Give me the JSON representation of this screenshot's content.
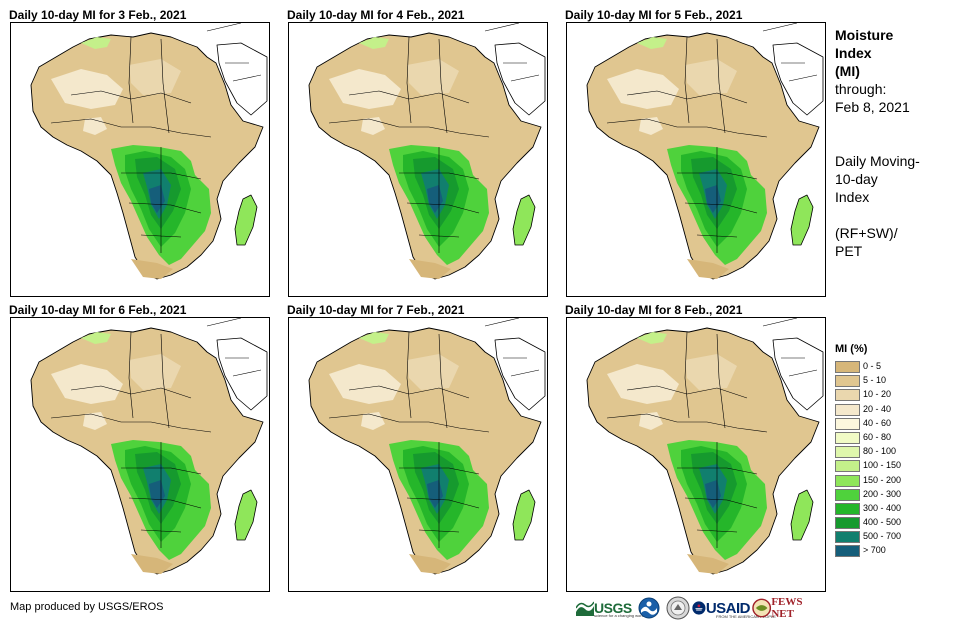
{
  "panels": [
    {
      "title": "Daily 10-day MI for 3 Feb., 2021"
    },
    {
      "title": "Daily 10-day MI for 4 Feb., 2021"
    },
    {
      "title": "Daily 10-day MI for 5 Feb., 2021"
    },
    {
      "title": "Daily 10-day MI for 6 Feb., 2021"
    },
    {
      "title": "Daily 10-day MI for 7 Feb., 2021"
    },
    {
      "title": "Daily 10-day MI for 8 Feb., 2021"
    }
  ],
  "sidebar": {
    "title_line1": "Moisture",
    "title_line2": "Index",
    "title_line3": "(MI)",
    "through": "through:",
    "date": "Feb 8, 2021",
    "desc_line1": "Daily Moving-",
    "desc_line2": "10-day",
    "desc_line3": "Index",
    "formula_line1": "(RF+SW)/",
    "formula_line2": "PET"
  },
  "legend": {
    "title": "MI (%)",
    "items": [
      {
        "label": "0 - 5",
        "color": "#d6b679"
      },
      {
        "label": "5 - 10",
        "color": "#e0c690"
      },
      {
        "label": "10 - 20",
        "color": "#ead7ae"
      },
      {
        "label": "20 - 40",
        "color": "#f4e8cc"
      },
      {
        "label": "40 - 60",
        "color": "#fcf7dd"
      },
      {
        "label": "60 - 80",
        "color": "#f1fbc6"
      },
      {
        "label": "80 - 100",
        "color": "#dff7ac"
      },
      {
        "label": "100 - 150",
        "color": "#c4f08a"
      },
      {
        "label": "150 - 200",
        "color": "#8fe65a"
      },
      {
        "label": "200 - 300",
        "color": "#4fd23c"
      },
      {
        "label": "300 - 400",
        "color": "#25b62a"
      },
      {
        "label": "400 - 500",
        "color": "#169a2e"
      },
      {
        "label": "500 - 700",
        "color": "#117f6e"
      },
      {
        "label": "> 700",
        "color": "#155e7a"
      }
    ]
  },
  "credit": "Map produced by USGS/EROS",
  "logos": {
    "usgs": "USGS",
    "usgs_tagline": "science for a changing world",
    "usaid": "USAID",
    "usaid_tagline": "FROM THE AMERICAN PEOPLE",
    "fews": "FEWS NET"
  }
}
